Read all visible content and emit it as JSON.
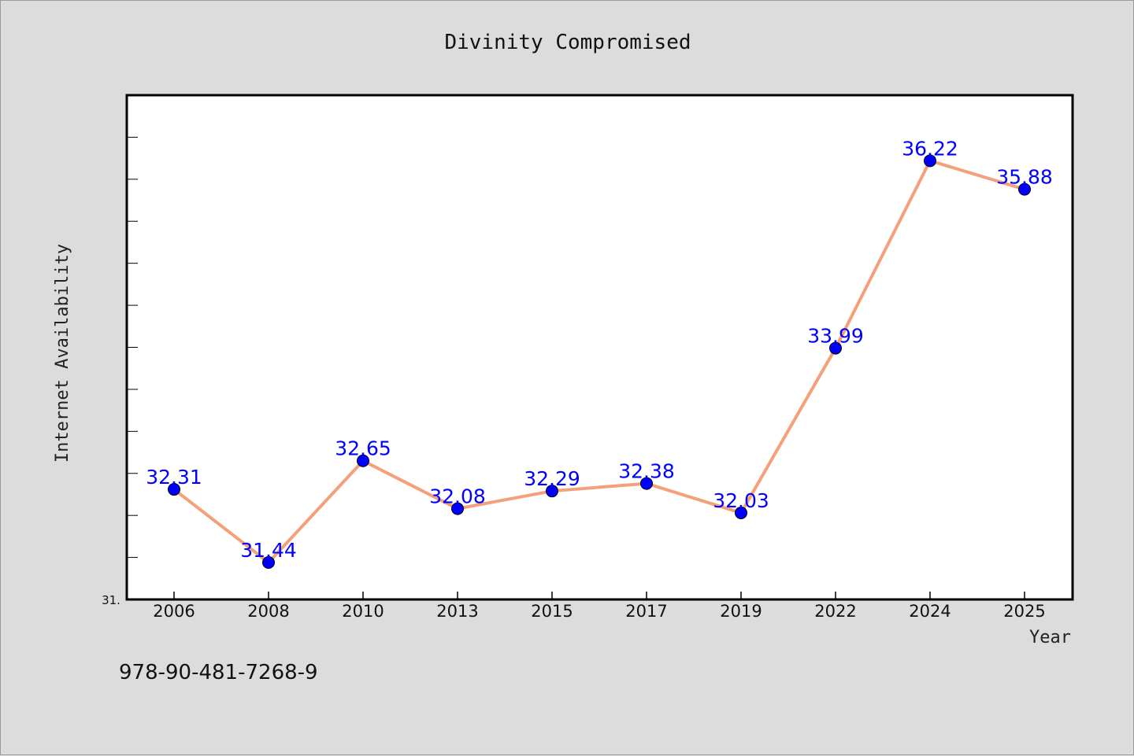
{
  "chart_data": {
    "type": "line",
    "title": "Divinity Compromised",
    "xlabel": "Year",
    "ylabel": "Internet Availability",
    "categories": [
      "2006",
      "2008",
      "2010",
      "2013",
      "2015",
      "2017",
      "2019",
      "2022",
      "2024",
      "2025"
    ],
    "series": [
      {
        "values": [
          32.31,
          31.44,
          32.65,
          32.08,
          32.29,
          32.38,
          32.03,
          33.99,
          36.22,
          35.88
        ]
      }
    ],
    "data_labels": [
      "32.31",
      "31.44",
      "32.65",
      "32.08",
      "32.29",
      "32.38",
      "32.03",
      "33.99",
      "36.22",
      "35.88"
    ],
    "ylim": [
      31.0,
      37.0
    ],
    "y_tick_label": "31.",
    "grid": false,
    "line_color": "#f4a07a",
    "marker_color": "#0000ff",
    "label_color": "#0000ff"
  },
  "footer": {
    "isbn": "978-90-481-7268-9"
  }
}
